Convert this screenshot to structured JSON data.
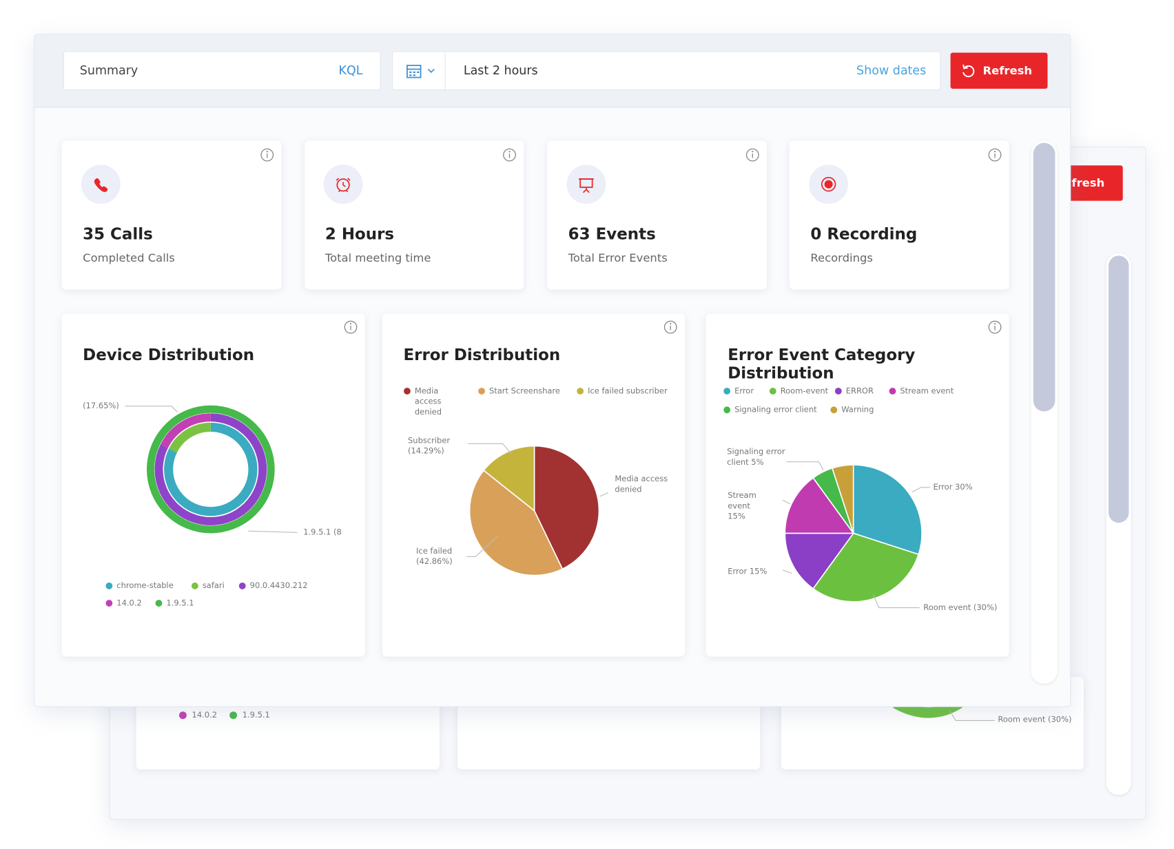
{
  "toolbar": {
    "search": "Summary",
    "query_language": "KQL",
    "time_range": "Last 2 hours",
    "show_dates": "Show dates",
    "refresh": "Refresh"
  },
  "cards": [
    {
      "value": "35 Calls",
      "label": "Completed Calls"
    },
    {
      "value": "2 Hours",
      "label": "Total meeting time"
    },
    {
      "value": "63 Events",
      "label": "Total Error Events"
    },
    {
      "value": "0 Recording",
      "label": "Recordings"
    }
  ],
  "chart_data": [
    {
      "type": "donut",
      "title": "Device Distribution",
      "rings": [
        {
          "categories": [
            "chrome-stable",
            "safari"
          ],
          "values": [
            82.35,
            17.65
          ],
          "colors": [
            "#3aabc0",
            "#7cc242"
          ]
        },
        {
          "categories": [
            "90.0.4430.212",
            "14.0.2"
          ],
          "values": [
            82.35,
            17.65
          ],
          "colors": [
            "#8e44c8",
            "#c23fb5"
          ]
        },
        {
          "categories": [
            "1.9.5.1"
          ],
          "values": [
            100
          ],
          "colors": [
            "#45b94a"
          ]
        }
      ],
      "annotations": [
        "(17.65%)",
        "1.9.5.1 (8"
      ]
    },
    {
      "type": "pie",
      "title": "Error Distribution",
      "categories": [
        "Media access denied",
        "Start Screenshare",
        "Ice failed subscriber"
      ],
      "values": [
        42.86,
        42.86,
        14.29
      ],
      "colors": [
        "#a23232",
        "#d9a05a",
        "#c4b43c"
      ],
      "slice_labels": [
        "Media access denied",
        "Ice failed (42.86%)",
        "Subscriber (14.29%)"
      ]
    },
    {
      "type": "pie",
      "title": "Error Event Category Distribution",
      "categories": [
        "Error",
        "Room-event",
        "ERROR",
        "Stream event",
        "Signaling error client",
        "Warning"
      ],
      "values": [
        30,
        30,
        15,
        15,
        5,
        5
      ],
      "colors": [
        "#3aabc0",
        "#6cc040",
        "#8a3fc6",
        "#c03bb0",
        "#45b94a",
        "#c8a03a"
      ],
      "slice_labels": [
        "Error 30%",
        "Room event (30%)",
        "Error 15%",
        "Stream event 15%",
        "Signaling error client 5%",
        null
      ]
    }
  ],
  "background": {
    "refresh": "fresh",
    "legend": [
      "14.0.2",
      "1.9.5.1"
    ],
    "slice_label": "Room event (30%)"
  }
}
